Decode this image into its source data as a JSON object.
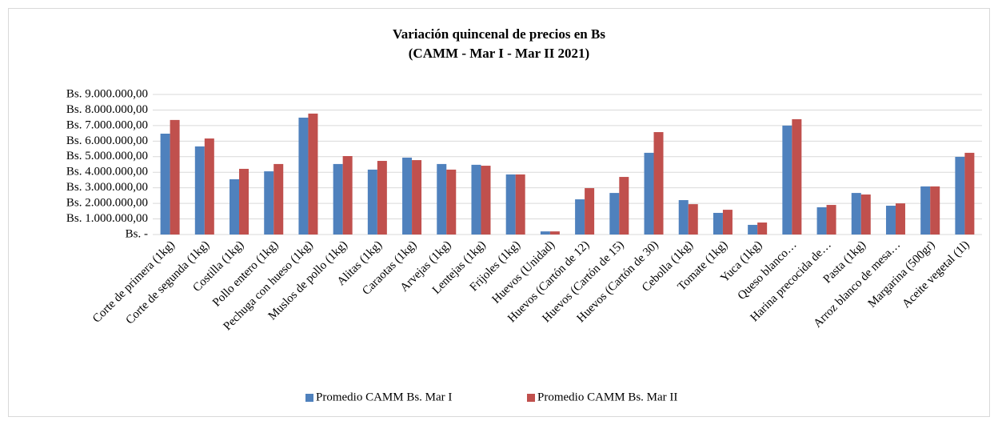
{
  "chart_data": {
    "type": "bar",
    "title": "Variación quincenal de precios en Bs",
    "subtitle": "(CAMM - Mar I - Mar II 2021)",
    "categories": [
      "Corte de primera (1kg)",
      "Corte de segunda (1kg)",
      "Costilla (1kg)",
      "Pollo entero (1kg)",
      "Pechuga con hueso (1kg)",
      "Muslos de pollo (1kg)",
      "Alitas (1kg)",
      "Caraotas (1kg)",
      "Arvejas (1kg)",
      "Lentejas (1kg)",
      "Frijoles (1kg)",
      "Huevos (Unidad)",
      "Huevos (Cartón de 12)",
      "Huevos (Cartón de 15)",
      "Huevos (Cartón de 30)",
      "Cebolla (1kg)",
      "Tomate (1kg)",
      "Yuca (1kg)",
      "Queso blanco…",
      "Harina precocida de…",
      "Pasta (1kg)",
      "Arroz blanco de mesa…",
      "Margarina (500gr)",
      "Aceite vegetal (1l)"
    ],
    "series": [
      {
        "name": "Promedio CAMM Bs. Mar I",
        "color": "#4f81bd",
        "values": [
          6480000,
          5660000,
          3550000,
          4060000,
          7510000,
          4530000,
          4170000,
          4940000,
          4530000,
          4480000,
          3860000,
          200000,
          2260000,
          2670000,
          5250000,
          2210000,
          1390000,
          620000,
          7000000,
          1750000,
          2670000,
          1850000,
          3090000,
          4990000
        ]
      },
      {
        "name": "Promedio CAMM Bs. Mar II",
        "color": "#c0504d",
        "values": [
          7360000,
          6170000,
          4220000,
          4530000,
          7770000,
          5040000,
          4730000,
          4780000,
          4170000,
          4420000,
          3860000,
          200000,
          2980000,
          3700000,
          6580000,
          1950000,
          1590000,
          770000,
          7410000,
          1900000,
          2570000,
          2000000,
          3090000,
          5250000
        ]
      }
    ],
    "ylim": [
      0,
      9000000
    ],
    "yticks": [
      {
        "value": 0,
        "label": "Bs. -"
      },
      {
        "value": 1000000,
        "label": "Bs. 1.000.000,00"
      },
      {
        "value": 2000000,
        "label": "Bs. 2.000.000,00"
      },
      {
        "value": 3000000,
        "label": "Bs. 3.000.000,00"
      },
      {
        "value": 4000000,
        "label": "Bs. 4.000.000,00"
      },
      {
        "value": 5000000,
        "label": "Bs. 5.000.000,00"
      },
      {
        "value": 6000000,
        "label": "Bs. 6.000.000,00"
      },
      {
        "value": 7000000,
        "label": "Bs. 7.000.000,00"
      },
      {
        "value": 8000000,
        "label": "Bs. 8.000.000,00"
      },
      {
        "value": 9000000,
        "label": "Bs. 9.000.000,00"
      }
    ],
    "grid": true,
    "legend": "bottom"
  }
}
